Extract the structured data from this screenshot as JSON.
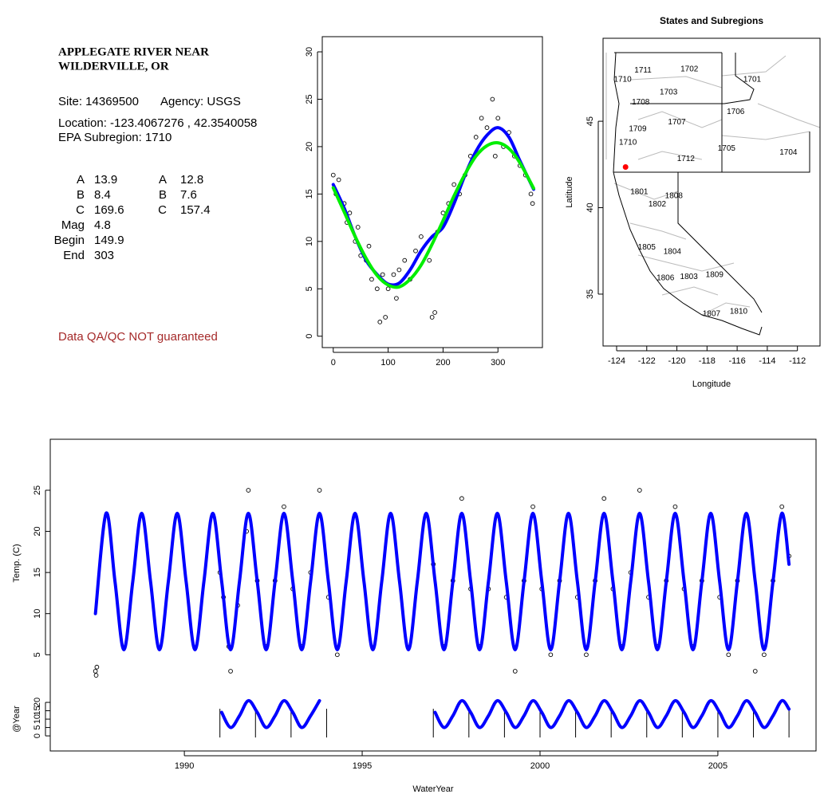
{
  "info": {
    "title_lines": [
      "APPLEGATE RIVER NEAR",
      "WILDERVILLE, OR"
    ],
    "site": "Site: 14369500",
    "agency": "Agency: USGS",
    "location": "Location: -123.4067276 , 42.3540058",
    "subregion": "EPA Subregion: 1710",
    "params_left": [
      [
        "A",
        13.9
      ],
      [
        "B",
        8.4
      ],
      [
        "C",
        169.6
      ],
      [
        "Mag",
        4.8
      ],
      [
        "Begin",
        149.9
      ],
      [
        "End",
        303
      ]
    ],
    "params_right": [
      [
        "A",
        12.8
      ],
      [
        "B",
        7.6
      ],
      [
        "C",
        157.4
      ]
    ],
    "disclaimer": "Data QA/QC NOT guaranteed"
  },
  "chart_data": [
    {
      "type": "scatter",
      "xlim": [
        -20,
        381
      ],
      "ylim": [
        -1.2,
        31.6
      ],
      "xticks": [
        0,
        100,
        200,
        300
      ],
      "yticks": [
        0,
        5,
        10,
        15,
        20,
        25,
        30
      ],
      "series": [
        {
          "style": "points",
          "color": "#000000",
          "x": [
            0,
            5,
            10,
            20,
            25,
            30,
            40,
            45,
            50,
            60,
            65,
            70,
            80,
            85,
            90,
            95,
            100,
            110,
            115,
            120,
            130,
            140,
            150,
            160,
            175,
            180,
            185,
            190,
            200,
            210,
            220,
            230,
            240,
            250,
            260,
            270,
            280,
            290,
            295,
            300,
            310,
            320,
            330,
            340,
            350,
            360,
            363
          ],
          "values": [
            17,
            15,
            16.5,
            14,
            12,
            13,
            10,
            11.5,
            8.5,
            8,
            9.5,
            6,
            5,
            1.5,
            6.5,
            2,
            5,
            6.5,
            4,
            7,
            8,
            6,
            9,
            10.5,
            8,
            2,
            2.5,
            11,
            13,
            14,
            16,
            15,
            17,
            19,
            21,
            23,
            22,
            25,
            19,
            23,
            20,
            21.5,
            19,
            18,
            17,
            15,
            14
          ]
        },
        {
          "style": "line",
          "color": "#0000ff",
          "x": [
            0,
            20,
            40,
            60,
            80,
            100,
            120,
            140,
            160,
            180,
            200,
            220,
            240,
            260,
            280,
            300,
            320,
            340,
            365
          ],
          "values": [
            16,
            13.5,
            10.5,
            8,
            6.5,
            5.5,
            5.6,
            7,
            9,
            10.5,
            11.5,
            14,
            17,
            19.5,
            21.2,
            22,
            21,
            18.5,
            15.5
          ]
        },
        {
          "style": "line",
          "color": "#00ee00",
          "x": [
            0,
            20,
            40,
            60,
            80,
            100,
            120,
            140,
            160,
            180,
            200,
            220,
            240,
            260,
            280,
            300,
            320,
            340,
            365
          ],
          "values": [
            15.66,
            13.1,
            10.5,
            8.2,
            6.4,
            5.4,
            5.2,
            6.0,
            7.5,
            9.7,
            12.2,
            14.8,
            17.1,
            19.0,
            20.1,
            20.4,
            19.8,
            18.3,
            15.6
          ]
        }
      ]
    },
    {
      "type": "map",
      "title": "States and Subregions",
      "xlabel": "Longitude",
      "ylabel": "Latitude",
      "xlim": [
        -124.9,
        -110.5
      ],
      "ylim": [
        32,
        49.8
      ],
      "xticks": [
        -124,
        -122,
        -120,
        -118,
        -116,
        -114,
        -112
      ],
      "yticks": [
        35,
        40,
        45
      ],
      "regions": [
        {
          "label": "1702",
          "lon": -119.17,
          "lat": 48.0
        },
        {
          "label": "1701",
          "lon": -115.0,
          "lat": 47.4
        },
        {
          "label": "1711",
          "lon": -122.25,
          "lat": 47.95
        },
        {
          "label": "1710",
          "lon": -123.6,
          "lat": 47.4
        },
        {
          "label": "1703",
          "lon": -120.55,
          "lat": 46.66
        },
        {
          "label": "1708",
          "lon": -122.4,
          "lat": 46.1
        },
        {
          "label": "1706",
          "lon": -116.1,
          "lat": 45.55
        },
        {
          "label": "1707",
          "lon": -120.0,
          "lat": 44.95
        },
        {
          "label": "1709",
          "lon": -122.6,
          "lat": 44.54
        },
        {
          "label": "1710",
          "lon": -123.25,
          "lat": 43.76
        },
        {
          "label": "1705",
          "lon": -116.7,
          "lat": 43.43
        },
        {
          "label": "1704",
          "lon": -112.6,
          "lat": 43.2
        },
        {
          "label": "1712",
          "lon": -119.4,
          "lat": 42.83
        },
        {
          "label": "1801",
          "lon": -122.5,
          "lat": 40.9
        },
        {
          "label": "1808",
          "lon": -120.2,
          "lat": 40.67
        },
        {
          "label": "1802",
          "lon": -121.3,
          "lat": 40.2
        },
        {
          "label": "1805",
          "lon": -122.0,
          "lat": 37.7
        },
        {
          "label": "1804",
          "lon": -120.3,
          "lat": 37.44
        },
        {
          "label": "1803",
          "lon": -119.2,
          "lat": 36.0
        },
        {
          "label": "1809",
          "lon": -117.5,
          "lat": 36.1
        },
        {
          "label": "1806",
          "lon": -120.76,
          "lat": 35.92
        },
        {
          "label": "1807",
          "lon": -117.7,
          "lat": 33.85
        },
        {
          "label": "1810",
          "lon": -115.9,
          "lat": 34.0
        }
      ],
      "site": {
        "lon": -123.4067276,
        "lat": 42.3540058,
        "color": "#ff0000"
      }
    },
    {
      "type": "line",
      "xlabel": "WaterYear",
      "ylabel": "Temp. (C)",
      "xlim": [
        1986.23,
        2007.76
      ],
      "ylim": [
        -6.7,
        31.2
      ],
      "xticks": [
        1990,
        1995,
        2000,
        2005
      ],
      "yticks": [
        5,
        10,
        15,
        20,
        25
      ],
      "series": [
        {
          "style": "points",
          "color": "#000000",
          "x": [
            1987.5,
            1987.52,
            1987.54,
            1991.0,
            1991.1,
            1991.25,
            1991.3,
            1991.5,
            1991.75,
            1991.8,
            1992.05,
            1992.3,
            1992.55,
            1992.8,
            1993.05,
            1993.3,
            1993.55,
            1993.8,
            1994.05,
            1994.3,
            1997.0,
            1997.3,
            1997.55,
            1997.8,
            1998.05,
            1998.3,
            1998.55,
            1998.8,
            1999.05,
            1999.3,
            1999.55,
            1999.8,
            2000.05,
            2000.3,
            2000.55,
            2000.8,
            2001.05,
            2001.3,
            2001.55,
            2001.8,
            2002.05,
            2002.3,
            2002.55,
            2002.8,
            2003.05,
            2003.3,
            2003.55,
            2003.8,
            2004.05,
            2004.3,
            2004.55,
            2004.8,
            2005.05,
            2005.3,
            2005.55,
            2005.8,
            2006.05,
            2006.3,
            2006.55,
            2006.8,
            2007.0
          ],
          "values": [
            3.0,
            2.5,
            3.5,
            15,
            12,
            6,
            3,
            11,
            20,
            25,
            14,
            6,
            14,
            23,
            13,
            6,
            15,
            25,
            12,
            5,
            16,
            6,
            14,
            24,
            13,
            6,
            13,
            22,
            12,
            3,
            14,
            23,
            13,
            5,
            14,
            22,
            12,
            5,
            14,
            24,
            13,
            6,
            15,
            25,
            12,
            6,
            14,
            23,
            13,
            6,
            14,
            22,
            12,
            5,
            14,
            22,
            3,
            5,
            14,
            23,
            17
          ]
        },
        {
          "style": "line",
          "color": "#0000ff",
          "x": [
            1987.5,
            1987.8,
            1988.05,
            1988.3,
            1988.55,
            1988.8,
            1989.05,
            1989.3,
            1989.55,
            1989.8,
            1990.05,
            1990.3,
            1990.55,
            1990.8,
            1991.05,
            1991.3,
            1991.55,
            1991.8,
            1992.05,
            1992.3,
            1992.55,
            1992.8,
            1993.05,
            1993.3,
            1993.55,
            1993.8,
            1994.05,
            1994.3,
            1994.55,
            1994.8,
            1995.05,
            1995.3,
            1995.55,
            1995.8,
            1996.05,
            1996.3,
            1996.55,
            1996.8,
            1997.05,
            1997.3,
            1997.55,
            1997.8,
            1998.05,
            1998.3,
            1998.55,
            1998.8,
            1999.05,
            1999.3,
            1999.55,
            1999.8,
            2000.05,
            2000.3,
            2000.55,
            2000.8,
            2001.05,
            2001.3,
            2001.55,
            2001.8,
            2002.05,
            2002.3,
            2002.55,
            2002.8,
            2003.05,
            2003.3,
            2003.55,
            2003.8,
            2004.05,
            2004.3,
            2004.55,
            2004.8,
            2005.05,
            2005.3,
            2005.55,
            2005.8,
            2006.05,
            2006.3,
            2006.55,
            2006.8,
            2007.0
          ],
          "values": [
            10,
            22.2,
            13.9,
            5.6,
            13.9,
            22.2,
            13.9,
            5.6,
            13.9,
            22.2,
            13.9,
            5.6,
            13.9,
            22.2,
            13.9,
            5.6,
            13.9,
            22.2,
            13.9,
            5.6,
            13.9,
            22.2,
            13.9,
            5.6,
            13.9,
            22.2,
            13.9,
            5.6,
            13.9,
            22.2,
            13.9,
            5.6,
            13.9,
            22.2,
            13.9,
            5.6,
            13.9,
            22.2,
            13.9,
            5.6,
            13.9,
            22.2,
            13.9,
            5.6,
            13.9,
            22.2,
            13.9,
            5.6,
            13.9,
            22.2,
            13.9,
            5.6,
            13.9,
            22.2,
            13.9,
            5.6,
            13.9,
            22.2,
            13.9,
            5.6,
            13.9,
            22.2,
            13.9,
            5.6,
            13.9,
            22.2,
            13.9,
            5.6,
            13.9,
            22.2,
            13.9,
            5.6,
            13.9,
            22.2,
            13.9,
            5.6,
            13.9,
            22.2,
            16
          ]
        }
      ]
    },
    {
      "type": "line",
      "ylabel": "@Year",
      "xlim": [
        1986.23,
        2007.76
      ],
      "ylim": [
        -9,
        177
      ],
      "yticks": [
        0,
        5,
        10,
        15,
        20
      ],
      "year_marks": [
        1991,
        1992,
        1993,
        1994,
        1997,
        1998,
        1999,
        2000,
        2001,
        2002,
        2003,
        2004,
        2005,
        2006,
        2007
      ],
      "series": [
        {
          "style": "line",
          "color": "#0000ff",
          "x": [
            1991.05,
            1991.3,
            1991.55,
            1991.8,
            1992.05,
            1992.3,
            1992.55,
            1992.8,
            1993.05,
            1993.3,
            1993.55,
            1993.8,
            1994.05,
            1994.3,
            1994.55,
            1994.8,
            1995.05,
            1995.3,
            1995.55,
            1995.8,
            1996.05,
            1996.3,
            1996.55,
            1996.8,
            1997.05,
            1997.3,
            1997.55,
            1997.8,
            1998.05,
            1998.3,
            1998.55,
            1998.8,
            1999.05,
            1999.3,
            1999.55,
            1999.8,
            2000.05,
            2000.3,
            2000.55,
            2000.8,
            2001.05,
            2001.3,
            2001.55,
            2001.8,
            2002.05,
            2002.3,
            2002.55,
            2002.8,
            2003.05,
            2003.3,
            2003.55,
            2003.8,
            2004.05,
            2004.3,
            2004.55,
            2004.8,
            2005.05,
            2005.3,
            2005.55,
            2005.8,
            2006.05,
            2006.3,
            2006.55,
            2006.8,
            2007.0
          ],
          "values": [
            14,
            5,
            12,
            21,
            14,
            5,
            12,
            21,
            14,
            5,
            12,
            21,
            null,
            null,
            null,
            null,
            null,
            null,
            null,
            null,
            null,
            null,
            null,
            null,
            14,
            5,
            12,
            21,
            14,
            5,
            12,
            21,
            14,
            5,
            12,
            21,
            14,
            5,
            12,
            21,
            14,
            5,
            12,
            21,
            14,
            5,
            12,
            21,
            14,
            5,
            12,
            21,
            14,
            5,
            12,
            21,
            14,
            5,
            12,
            21,
            14,
            5,
            12,
            21,
            16
          ]
        }
      ]
    }
  ]
}
